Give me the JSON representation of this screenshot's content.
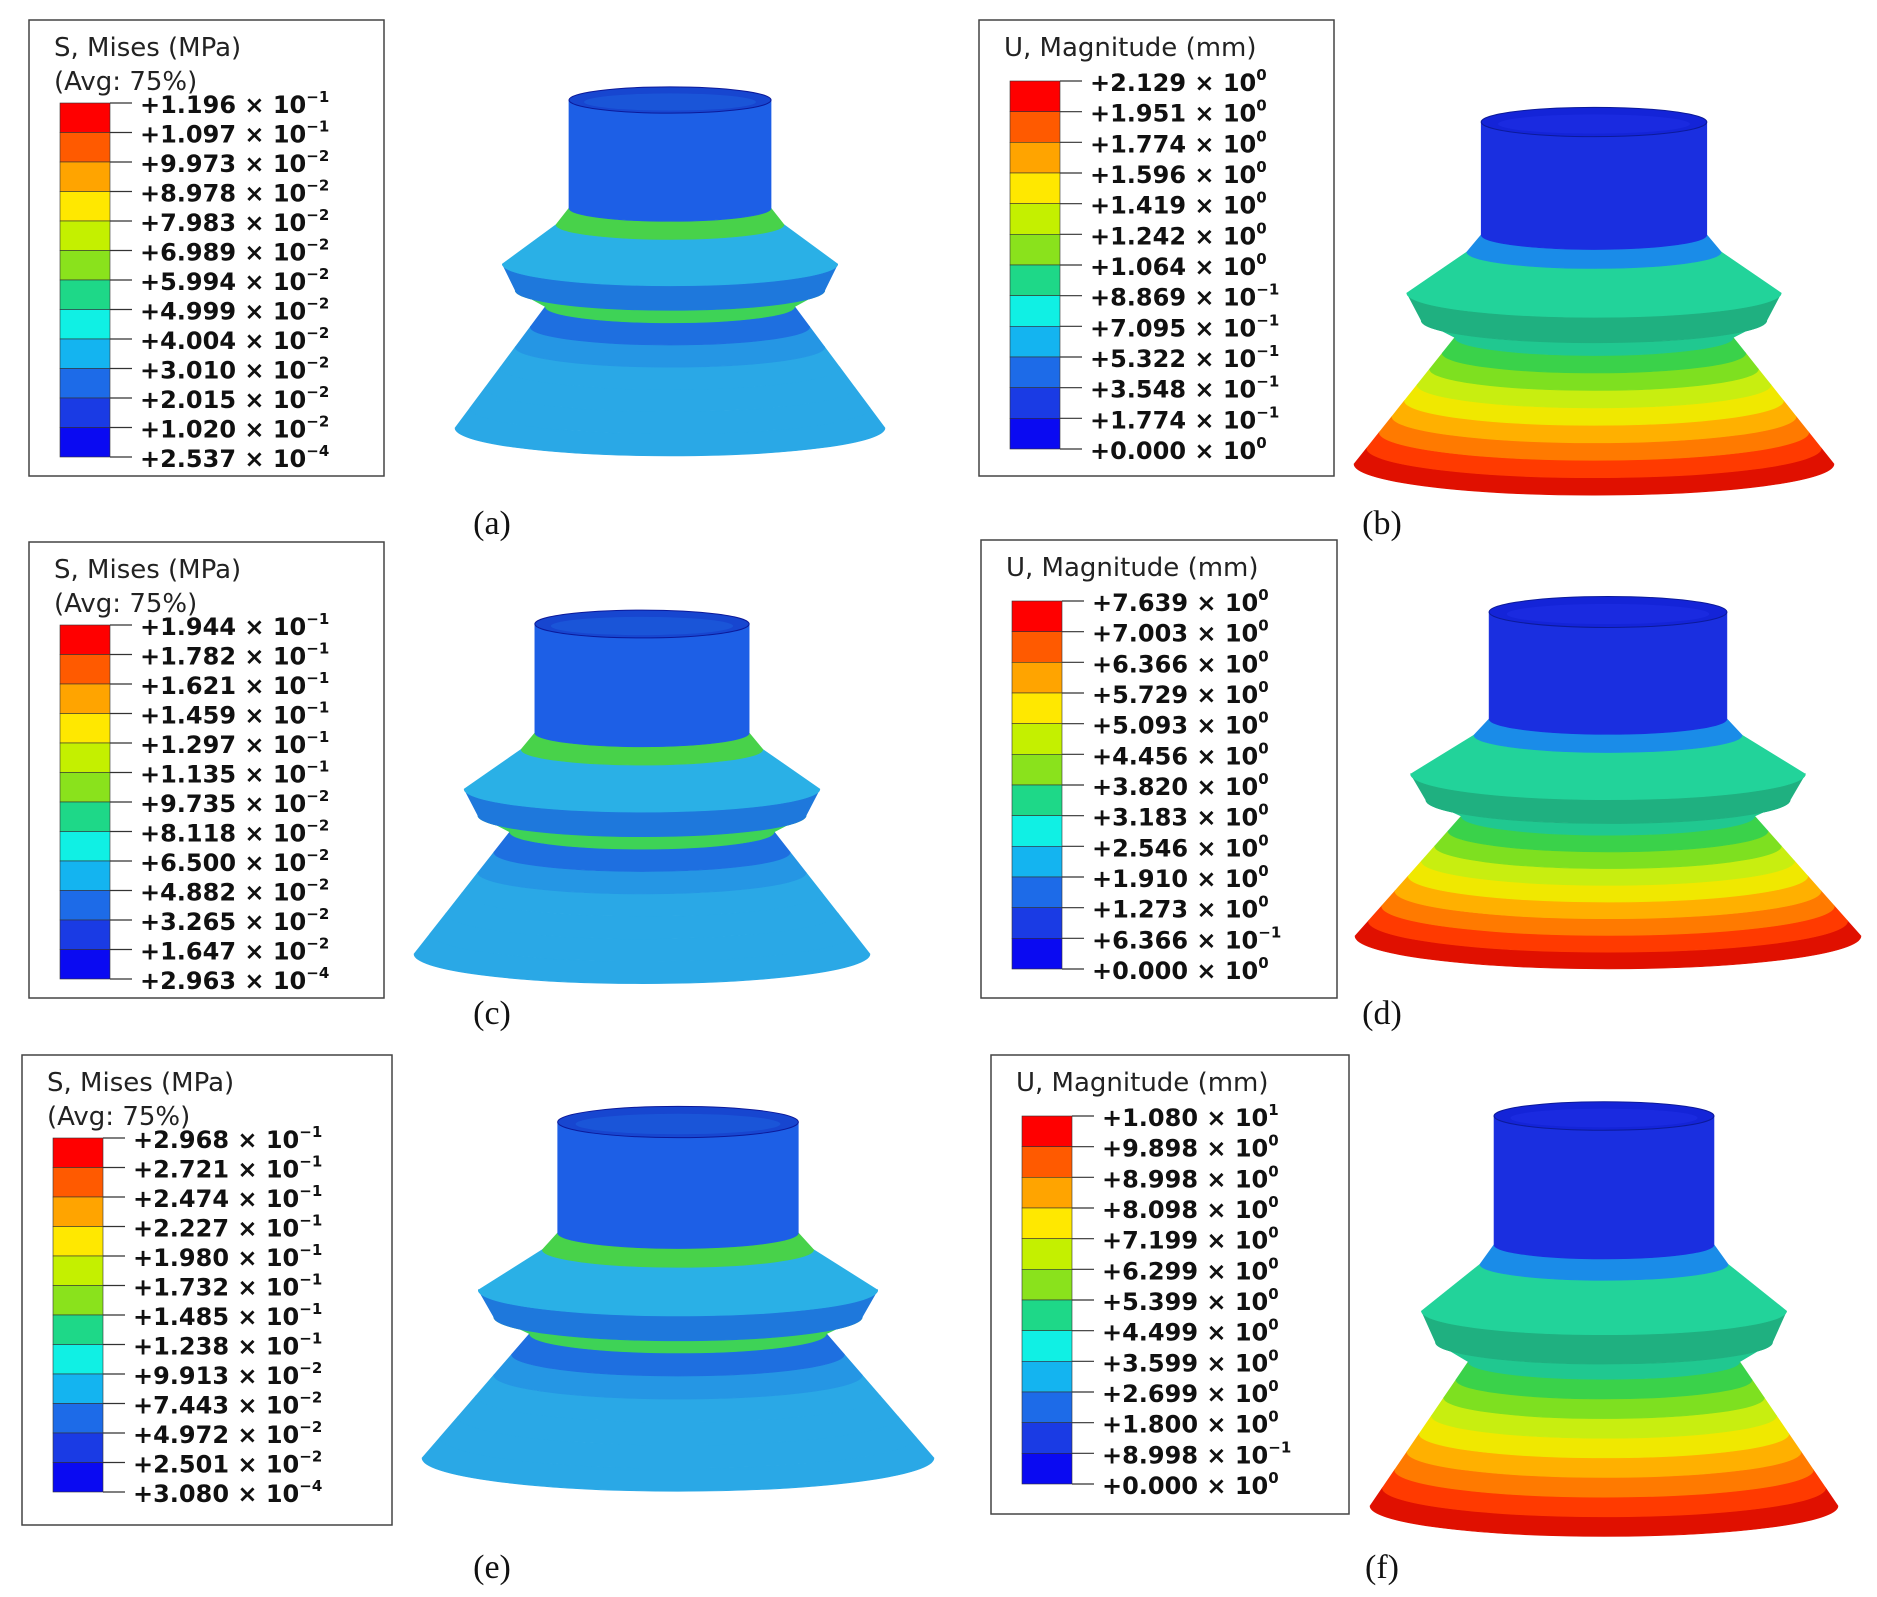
{
  "panels": [
    {
      "legend_title": "S, Mises (MPa)",
      "legend_subtitle": "(Avg: 75%)",
      "caption": "(a)",
      "labels": [
        {
          "text": "+1.196 × 10",
          "exp": "−1"
        },
        {
          "text": "+1.097 × 10",
          "exp": "−1"
        },
        {
          "text": "+9.973 × 10",
          "exp": "−2"
        },
        {
          "text": "+8.978 × 10",
          "exp": "−2"
        },
        {
          "text": "+7.983 × 10",
          "exp": "−2"
        },
        {
          "text": "+6.989 × 10",
          "exp": "−2"
        },
        {
          "text": "+5.994 × 10",
          "exp": "−2"
        },
        {
          "text": "+4.999 × 10",
          "exp": "−2"
        },
        {
          "text": "+4.004 × 10",
          "exp": "−2"
        },
        {
          "text": "+3.010 × 10",
          "exp": "−2"
        },
        {
          "text": "+2.015 × 10",
          "exp": "−2"
        },
        {
          "text": "+1.020 × 10",
          "exp": "−2"
        },
        {
          "text": "+2.537 × 10",
          "exp": "−4"
        }
      ]
    },
    {
      "legend_title": "U, Magnitude (mm)",
      "caption": "(b)",
      "labels": [
        {
          "text": "+2.129 × 10",
          "exp": "0"
        },
        {
          "text": "+1.951 × 10",
          "exp": "0"
        },
        {
          "text": "+1.774 × 10",
          "exp": "0"
        },
        {
          "text": "+1.596 × 10",
          "exp": "0"
        },
        {
          "text": "+1.419 × 10",
          "exp": "0"
        },
        {
          "text": "+1.242 × 10",
          "exp": "0"
        },
        {
          "text": "+1.064 × 10",
          "exp": "0"
        },
        {
          "text": "+8.869 × 10",
          "exp": "−1"
        },
        {
          "text": "+7.095 × 10",
          "exp": "−1"
        },
        {
          "text": "+5.322 × 10",
          "exp": "−1"
        },
        {
          "text": "+3.548 × 10",
          "exp": "−1"
        },
        {
          "text": "+1.774 × 10",
          "exp": "−1"
        },
        {
          "text": "+0.000 × 10",
          "exp": "0"
        }
      ]
    },
    {
      "legend_title": "S, Mises (MPa)",
      "legend_subtitle": "(Avg: 75%)",
      "caption": "(c)",
      "labels": [
        {
          "text": "+1.944 × 10",
          "exp": "−1"
        },
        {
          "text": "+1.782 × 10",
          "exp": "−1"
        },
        {
          "text": "+1.621 × 10",
          "exp": "−1"
        },
        {
          "text": "+1.459 × 10",
          "exp": "−1"
        },
        {
          "text": "+1.297 × 10",
          "exp": "−1"
        },
        {
          "text": "+1.135 × 10",
          "exp": "−1"
        },
        {
          "text": "+9.735 × 10",
          "exp": "−2"
        },
        {
          "text": "+8.118 × 10",
          "exp": "−2"
        },
        {
          "text": "+6.500 × 10",
          "exp": "−2"
        },
        {
          "text": "+4.882 × 10",
          "exp": "−2"
        },
        {
          "text": "+3.265 × 10",
          "exp": "−2"
        },
        {
          "text": "+1.647 × 10",
          "exp": "−2"
        },
        {
          "text": "+2.963 × 10",
          "exp": "−4"
        }
      ]
    },
    {
      "legend_title": "U, Magnitude (mm)",
      "caption": "(d)",
      "labels": [
        {
          "text": "+7.639 × 10",
          "exp": "0"
        },
        {
          "text": "+7.003 × 10",
          "exp": "0"
        },
        {
          "text": "+6.366 × 10",
          "exp": "0"
        },
        {
          "text": "+5.729 × 10",
          "exp": "0"
        },
        {
          "text": "+5.093 × 10",
          "exp": "0"
        },
        {
          "text": "+4.456 × 10",
          "exp": "0"
        },
        {
          "text": "+3.820 × 10",
          "exp": "0"
        },
        {
          "text": "+3.183 × 10",
          "exp": "0"
        },
        {
          "text": "+2.546 × 10",
          "exp": "0"
        },
        {
          "text": "+1.910 × 10",
          "exp": "0"
        },
        {
          "text": "+1.273 × 10",
          "exp": "0"
        },
        {
          "text": "+6.366 × 10",
          "exp": "−1"
        },
        {
          "text": "+0.000 × 10",
          "exp": "0"
        }
      ]
    },
    {
      "legend_title": "S, Mises (MPa)",
      "legend_subtitle": "(Avg: 75%)",
      "caption": "(e)",
      "labels": [
        {
          "text": "+2.968 × 10",
          "exp": "−1"
        },
        {
          "text": "+2.721 × 10",
          "exp": "−1"
        },
        {
          "text": "+2.474 × 10",
          "exp": "−1"
        },
        {
          "text": "+2.227 × 10",
          "exp": "−1"
        },
        {
          "text": "+1.980 × 10",
          "exp": "−1"
        },
        {
          "text": "+1.732 × 10",
          "exp": "−1"
        },
        {
          "text": "+1.485 × 10",
          "exp": "−1"
        },
        {
          "text": "+1.238 × 10",
          "exp": "−1"
        },
        {
          "text": "+9.913 × 10",
          "exp": "−2"
        },
        {
          "text": "+7.443 × 10",
          "exp": "−2"
        },
        {
          "text": "+4.972 × 10",
          "exp": "−2"
        },
        {
          "text": "+2.501 × 10",
          "exp": "−2"
        },
        {
          "text": "+3.080 × 10",
          "exp": "−4"
        }
      ]
    },
    {
      "legend_title": "U, Magnitude (mm)",
      "caption": "(f)",
      "labels": [
        {
          "text": "+1.080 × 10",
          "exp": "1"
        },
        {
          "text": "+9.898 × 10",
          "exp": "0"
        },
        {
          "text": "+8.998 × 10",
          "exp": "0"
        },
        {
          "text": "+8.098 × 10",
          "exp": "0"
        },
        {
          "text": "+7.199 × 10",
          "exp": "0"
        },
        {
          "text": "+6.299 × 10",
          "exp": "0"
        },
        {
          "text": "+5.399 × 10",
          "exp": "0"
        },
        {
          "text": "+4.499 × 10",
          "exp": "0"
        },
        {
          "text": "+3.599 × 10",
          "exp": "0"
        },
        {
          "text": "+2.699 × 10",
          "exp": "0"
        },
        {
          "text": "+1.800 × 10",
          "exp": "0"
        },
        {
          "text": "+8.998 × 10",
          "exp": "−1"
        },
        {
          "text": "+0.000 × 10",
          "exp": "0"
        }
      ]
    }
  ]
}
